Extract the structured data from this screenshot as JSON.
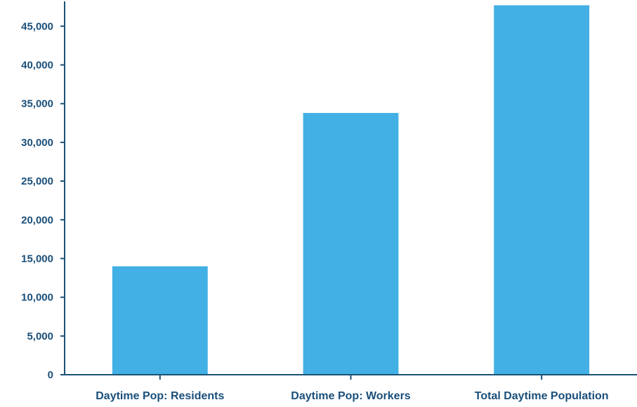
{
  "chart_data": {
    "type": "bar",
    "categories": [
      "Daytime Pop: Residents",
      "Daytime Pop: Workers",
      "Total Daytime Population"
    ],
    "values": [
      14000,
      33800,
      47700
    ],
    "title": "",
    "xlabel": "",
    "ylabel": "",
    "ylim": [
      0,
      48200
    ],
    "yticks": [
      0,
      5000,
      10000,
      15000,
      20000,
      25000,
      30000,
      35000,
      40000,
      45000
    ],
    "ytick_labels": [
      "0",
      "5,000",
      "10,000",
      "15,000",
      "20,000",
      "25,000",
      "30,000",
      "35,000",
      "40,000",
      "45,000"
    ],
    "grid": false,
    "legend": "none",
    "colors": {
      "bar": "#42b0e4",
      "axis": "#1a5276",
      "text": "#1a4f7a"
    }
  }
}
